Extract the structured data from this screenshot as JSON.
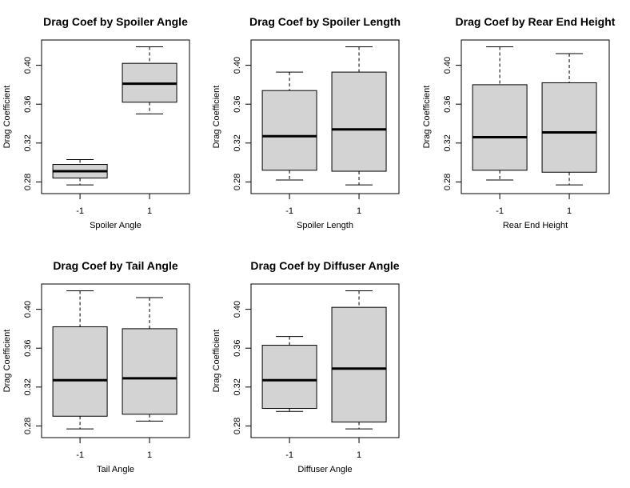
{
  "figure": {
    "background": "#ffffff",
    "box_fill": "#d3d3d3",
    "line_color": "#000000"
  },
  "chart_data": [
    {
      "type": "boxplot",
      "title": "Drag Coef by Spoiler Angle",
      "xlabel": "Spoiler Angle",
      "ylabel": "Drag Coefficient",
      "categories": [
        "-1",
        "1"
      ],
      "yticks": [
        "0.28",
        "0.32",
        "0.36",
        "0.40"
      ],
      "ylim": [
        0.268,
        0.426
      ],
      "boxes": [
        {
          "whisker_low": 0.277,
          "q1": 0.284,
          "median": 0.291,
          "q3": 0.298,
          "whisker_high": 0.303
        },
        {
          "whisker_low": 0.35,
          "q1": 0.362,
          "median": 0.381,
          "q3": 0.402,
          "whisker_high": 0.419
        }
      ]
    },
    {
      "type": "boxplot",
      "title": "Drag Coef by Spoiler Length",
      "xlabel": "Spoiler Length",
      "ylabel": "Drag Coefficient",
      "categories": [
        "-1",
        "1"
      ],
      "yticks": [
        "0.28",
        "0.32",
        "0.36",
        "0.40"
      ],
      "ylim": [
        0.268,
        0.426
      ],
      "boxes": [
        {
          "whisker_low": 0.282,
          "q1": 0.292,
          "median": 0.327,
          "q3": 0.374,
          "whisker_high": 0.393
        },
        {
          "whisker_low": 0.277,
          "q1": 0.291,
          "median": 0.334,
          "q3": 0.393,
          "whisker_high": 0.419
        }
      ]
    },
    {
      "type": "boxplot",
      "title": "Drag Coef by Rear End Height",
      "xlabel": "Rear End Height",
      "ylabel": "Drag Coefficient",
      "categories": [
        "-1",
        "1"
      ],
      "yticks": [
        "0.28",
        "0.32",
        "0.36",
        "0.40"
      ],
      "ylim": [
        0.268,
        0.426
      ],
      "boxes": [
        {
          "whisker_low": 0.282,
          "q1": 0.292,
          "median": 0.326,
          "q3": 0.38,
          "whisker_high": 0.419
        },
        {
          "whisker_low": 0.277,
          "q1": 0.29,
          "median": 0.331,
          "q3": 0.382,
          "whisker_high": 0.412
        }
      ]
    },
    {
      "type": "boxplot",
      "title": "Drag Coef by Tail Angle",
      "xlabel": "Tail Angle",
      "ylabel": "Drag Coefficient",
      "categories": [
        "-1",
        "1"
      ],
      "yticks": [
        "0.28",
        "0.32",
        "0.36",
        "0.40"
      ],
      "ylim": [
        0.268,
        0.426
      ],
      "boxes": [
        {
          "whisker_low": 0.277,
          "q1": 0.29,
          "median": 0.327,
          "q3": 0.382,
          "whisker_high": 0.419
        },
        {
          "whisker_low": 0.285,
          "q1": 0.292,
          "median": 0.329,
          "q3": 0.38,
          "whisker_high": 0.412
        }
      ]
    },
    {
      "type": "boxplot",
      "title": "Drag Coef by Diffuser Angle",
      "xlabel": "Diffuser Angle",
      "ylabel": "Drag Coefficient",
      "categories": [
        "-1",
        "1"
      ],
      "yticks": [
        "0.28",
        "0.32",
        "0.36",
        "0.40"
      ],
      "ylim": [
        0.268,
        0.426
      ],
      "boxes": [
        {
          "whisker_low": 0.295,
          "q1": 0.298,
          "median": 0.327,
          "q3": 0.363,
          "whisker_high": 0.372
        },
        {
          "whisker_low": 0.277,
          "q1": 0.284,
          "median": 0.339,
          "q3": 0.402,
          "whisker_high": 0.419
        }
      ]
    }
  ]
}
